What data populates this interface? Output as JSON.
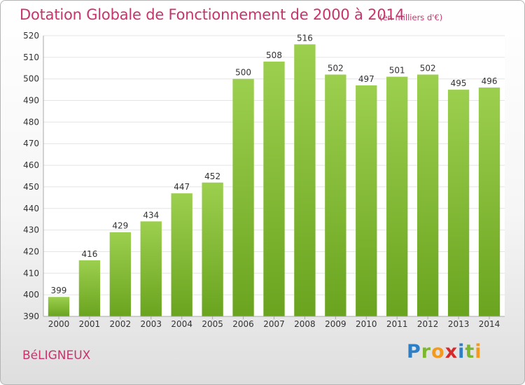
{
  "header": {
    "title": "Dotation Globale de Fonctionnement de 2000 à 2014",
    "unit": "(en milliers d'€)"
  },
  "footer": {
    "commune": "BéLIGNEUX",
    "brand_letters": [
      "P",
      "r",
      "o",
      "x",
      "i",
      "t",
      "i"
    ],
    "brand_colors": [
      "#2f7fc7",
      "#7cb82f",
      "#f39a1e",
      "#d62a2a",
      "#2f7fc7",
      "#7cb82f",
      "#f39a1e"
    ]
  },
  "chart_data": {
    "type": "bar",
    "title": "Dotation Globale de Fonctionnement de 2000 à 2014",
    "subtitle": "(en milliers d'€)",
    "xlabel": "",
    "ylabel": "",
    "categories": [
      "2000",
      "2001",
      "2002",
      "2003",
      "2004",
      "2005",
      "2006",
      "2007",
      "2008",
      "2009",
      "2010",
      "2011",
      "2012",
      "2013",
      "2014"
    ],
    "values": [
      399,
      416,
      429,
      434,
      447,
      452,
      500,
      508,
      516,
      502,
      497,
      501,
      502,
      495,
      496
    ],
    "ylim": [
      390,
      520
    ],
    "yticks": [
      390,
      400,
      410,
      420,
      430,
      440,
      450,
      460,
      470,
      480,
      490,
      500,
      510,
      520
    ],
    "grid": true,
    "bar_color_top": "#9ccf4e",
    "bar_color_bottom": "#6aa41f",
    "grid_color": "#e4e4e4",
    "axis_color": "#a8a8a8"
  }
}
